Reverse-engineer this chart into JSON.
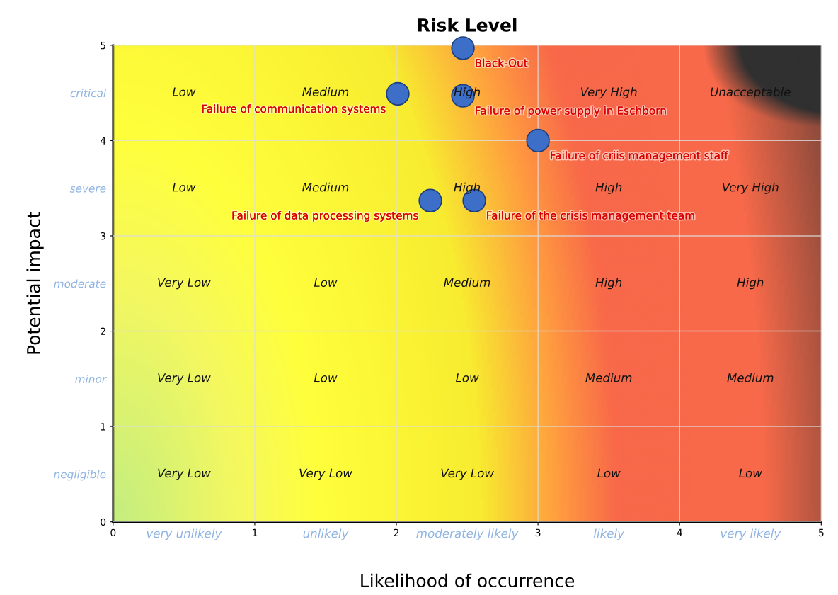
{
  "chart_data": {
    "type": "scatter",
    "title": "Risk Level",
    "xlabel": "Likelihood of occurrence",
    "ylabel": "Potential impact",
    "xlim": [
      0,
      5
    ],
    "ylim": [
      0,
      5
    ],
    "xticks": [
      0,
      {
        "value": 0.5,
        "label": "very unlikely"
      },
      1,
      {
        "value": 1.5,
        "label": "unlikely"
      },
      2,
      {
        "value": 2.5,
        "label": "moderately likely"
      },
      3,
      {
        "value": 3.5,
        "label": "likely"
      },
      4,
      {
        "value": 4.5,
        "label": "very likely"
      },
      5
    ],
    "yticks": [
      0,
      {
        "value": 0.5,
        "label": "negligible"
      },
      1,
      {
        "value": 1.5,
        "label": "minor"
      },
      2,
      {
        "value": 2.5,
        "label": "moderate"
      },
      3,
      {
        "value": 3.5,
        "label": "severe"
      },
      4,
      {
        "value": 4.5,
        "label": "critical"
      },
      5
    ],
    "grid": true,
    "legend": false,
    "marker": "circle",
    "x": [
      2.47,
      2.01,
      2.47,
      3.0,
      2.24,
      2.55
    ],
    "values": [
      4.97,
      4.49,
      4.47,
      4.0,
      3.37,
      3.37
    ],
    "color": "#3d6fc8",
    "value_labels": [
      "Black-Out",
      "Failure of communication systems",
      "Failure of power supply in Eschborn",
      "Failure of criis management staff",
      "Failure of data processing systems",
      "Failure of the crisis management team"
    ],
    "annotations": [
      "Low",
      "Medium",
      "High",
      "Very High",
      "Unacceptable",
      "Low",
      "Medium",
      "High",
      "High",
      "Very High",
      "Very Low",
      "Low",
      "Medium",
      "High",
      "High",
      "Very Low",
      "Low",
      "Low",
      "Medium",
      "Medium",
      "Very Low",
      "Very Low",
      "Very Low",
      "Low",
      "Low"
    ]
  }
}
